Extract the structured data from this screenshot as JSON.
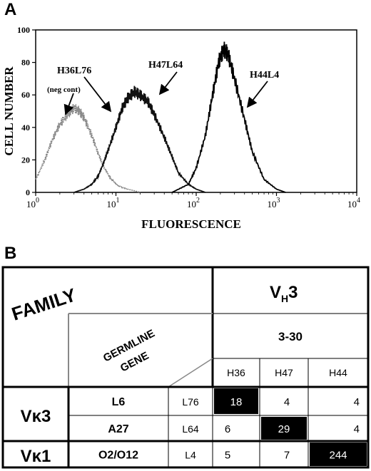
{
  "panel_a": {
    "label": "A"
  },
  "chart_data": {
    "type": "line",
    "title": "",
    "xlabel": "FLUORESCENCE",
    "ylabel": "CELL NUMBER",
    "xscale": "log",
    "xlim": [
      1,
      10000
    ],
    "ylim": [
      0,
      100
    ],
    "xticks": [
      "10^0",
      "10^1",
      "10^2",
      "10^3",
      "10^4"
    ],
    "yticks": [
      0,
      20,
      40,
      60,
      80,
      100
    ],
    "grid": false,
    "series": [
      {
        "name": "H36L76",
        "note": "(neg cont)",
        "color": "#888888",
        "x": [
          1.0,
          1.3,
          1.6,
          2.0,
          2.5,
          3.0,
          3.5,
          4.0,
          5.0,
          6.0,
          7.0,
          8.5,
          10,
          12,
          14,
          17,
          20
        ],
        "y": [
          8,
          20,
          32,
          42,
          48,
          52,
          50,
          46,
          35,
          24,
          16,
          9,
          5,
          3,
          2,
          1,
          0
        ]
      },
      {
        "name": "H47L64",
        "color": "#111111",
        "x": [
          3,
          4,
          5,
          6,
          7,
          8,
          10,
          12,
          14,
          17,
          20,
          25,
          30,
          40,
          50,
          60,
          80,
          100,
          130
        ],
        "y": [
          0,
          2,
          5,
          10,
          18,
          26,
          40,
          52,
          58,
          62,
          60,
          56,
          48,
          34,
          22,
          12,
          5,
          2,
          0
        ]
      },
      {
        "name": "H44L4",
        "color": "#000000",
        "x": [
          50,
          80,
          100,
          130,
          160,
          190,
          220,
          250,
          300,
          400,
          500,
          700,
          1000,
          1300
        ],
        "y": [
          0,
          5,
          15,
          35,
          60,
          80,
          88,
          85,
          70,
          45,
          25,
          8,
          2,
          0
        ]
      }
    ]
  },
  "annotations": {
    "h36": "H36L76",
    "neg": "(neg cont)",
    "h47": "H47L64",
    "h44": "H44L4"
  },
  "panel_b": {
    "label": "B",
    "family_label": "FAMILY",
    "germline_label_1": "GERMLINE",
    "germline_label_2": "GENE",
    "vh_family": "V",
    "vh_sub": "H",
    "vh_num": "3",
    "vh_gene": "3-30",
    "heavy_chains": [
      "H36",
      "H47",
      "H44"
    ],
    "rows": [
      {
        "family": "Vκ3",
        "gene": "L6",
        "light": "L76",
        "values": [
          "18",
          "4",
          "4"
        ],
        "dark": [
          true,
          false,
          false
        ]
      },
      {
        "family": "",
        "gene": "A27",
        "light": "L64",
        "values": [
          "6",
          "29",
          "4"
        ],
        "dark": [
          false,
          true,
          false
        ]
      },
      {
        "family": "Vκ1",
        "gene": "O2/O12",
        "light": "L4",
        "values": [
          "5",
          "7",
          "244"
        ],
        "dark": [
          false,
          false,
          true
        ]
      }
    ]
  }
}
